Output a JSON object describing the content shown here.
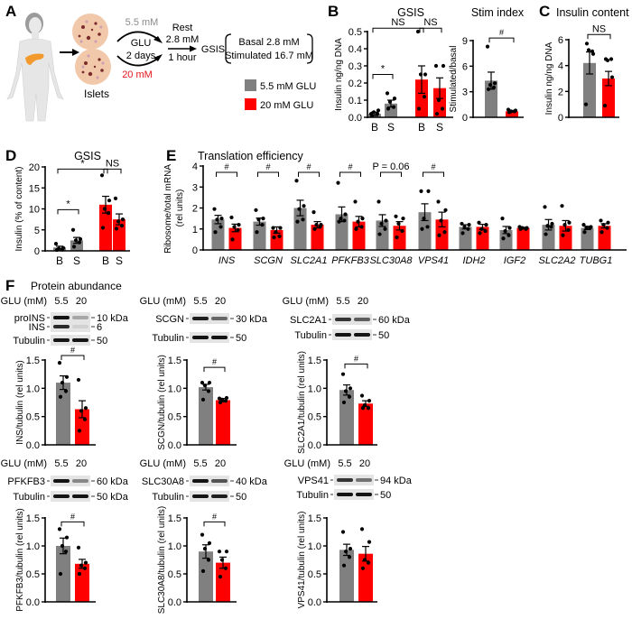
{
  "colors": {
    "glu_5_5": "#808080",
    "glu_20": "#ff0000",
    "text": "#000000",
    "gray_text": "#8c8c8c"
  },
  "panel_a": {
    "label": "A",
    "islets_label": "Islets",
    "low_glucose": "5.5 mM",
    "glu": "GLU",
    "duration": "2 days",
    "high_glucose": "20 mM",
    "rest": "Rest",
    "rest_conc": "2.8 mM",
    "rest_time": "1 hour",
    "gsis": "GSIS",
    "basal": "Basal 2.8 mM",
    "stimulated": "Stimulated 16.7 mM",
    "legend": [
      {
        "label": "5.5 mM GLU",
        "color": "#808080"
      },
      {
        "label": "20 mM GLU",
        "color": "#ff0000"
      }
    ]
  },
  "panel_labels": {
    "B": "B",
    "C": "C",
    "D": "D",
    "E": "E",
    "F": "F"
  },
  "panel_f_title": "Protein abundance",
  "chart_data": [
    {
      "id": "B_gsis",
      "type": "bar",
      "title": "GSIS",
      "ylabel": "Insulin ng/ng DNA",
      "ylim": [
        0,
        0.5
      ],
      "yticks": [
        "0.0",
        "0.1",
        "0.2",
        "0.3",
        "0.4",
        "0.5"
      ],
      "categories": [
        "B",
        "S",
        "B",
        "S"
      ],
      "bars": [
        {
          "group": "5.5 mM GLU",
          "mean": 0.02,
          "sem": 0.01,
          "points": [
            0.01,
            0.02,
            0.03,
            0.04,
            0.02
          ]
        },
        {
          "group": "5.5 mM GLU",
          "mean": 0.08,
          "sem": 0.02,
          "points": [
            0.05,
            0.06,
            0.09,
            0.11,
            0.14
          ]
        },
        {
          "group": "20 mM GLU",
          "mean": 0.22,
          "sem": 0.08,
          "points": [
            0.05,
            0.12,
            0.25,
            0.25,
            0.5
          ]
        },
        {
          "group": "20 mM GLU",
          "mean": 0.17,
          "sem": 0.06,
          "points": [
            0.02,
            0.05,
            0.1,
            0.3,
            0.3
          ]
        }
      ],
      "significance": [
        {
          "from": 0,
          "to": 1,
          "y": 0.25,
          "label": "*"
        },
        {
          "from": 0,
          "to": 2,
          "y": 0.52,
          "label": "NS"
        },
        {
          "from": 2,
          "to": 3,
          "y": 0.52,
          "label": "NS"
        }
      ]
    },
    {
      "id": "B_stim",
      "type": "bar",
      "title": "Stim index",
      "ylabel": "Stimulated/basal",
      "ylim": [
        0,
        9
      ],
      "yticks": [
        "0",
        "3",
        "6",
        "9"
      ],
      "categories": [],
      "bars": [
        {
          "group": "5.5 mM GLU",
          "mean": 4.3,
          "sem": 1.0,
          "points": [
            3.3,
            3.5,
            3.8,
            4.0,
            8.3
          ]
        },
        {
          "group": "20 mM GLU",
          "mean": 0.7,
          "sem": 0.1,
          "points": [
            0.6,
            0.7,
            0.7,
            0.8,
            0.9
          ]
        }
      ],
      "significance": [
        {
          "from": 0,
          "to": 1,
          "y": 9.3,
          "label": "#"
        }
      ]
    },
    {
      "id": "C",
      "type": "bar",
      "title": "Insulin content",
      "ylabel": "Insulin ng/ng DNA",
      "ylim": [
        0,
        6
      ],
      "yticks": [
        "0",
        "2",
        "4",
        "6"
      ],
      "categories": [],
      "bars": [
        {
          "group": "5.5 mM GLU",
          "mean": 4.2,
          "sem": 0.85,
          "points": [
            5.7,
            5.1,
            5.2,
            4.9,
            1.0
          ]
        },
        {
          "group": "20 mM GLU",
          "mean": 3.0,
          "sem": 0.55,
          "points": [
            4.5,
            4.5,
            4.4,
            3.1,
            0.9
          ]
        }
      ],
      "significance": [
        {
          "from": 0,
          "to": 1,
          "y": 6.4,
          "label": "NS"
        }
      ]
    },
    {
      "id": "D",
      "type": "bar",
      "title": "GSIS",
      "ylabel": "Insulin (% of content)",
      "ylim": [
        0,
        20
      ],
      "yticks": [
        "0",
        "5",
        "10",
        "15",
        "20"
      ],
      "categories": [
        "B",
        "S",
        "B",
        "S"
      ],
      "bars": [
        {
          "group": "5.5 mM GLU",
          "mean": 0.8,
          "sem": 0.3,
          "points": [
            0.2,
            0.3,
            0.5,
            0.7,
            1.7
          ]
        },
        {
          "group": "5.5 mM GLU",
          "mean": 2.5,
          "sem": 0.7,
          "points": [
            1.0,
            2.0,
            2.5,
            2.8,
            5.0
          ]
        },
        {
          "group": "20 mM GLU",
          "mean": 11.0,
          "sem": 2.0,
          "points": [
            5.5,
            9.0,
            10.0,
            12.0,
            18.0
          ]
        },
        {
          "group": "20 mM GLU",
          "mean": 7.5,
          "sem": 1.3,
          "points": [
            5.3,
            6.0,
            7.0,
            7.5,
            12.5
          ]
        }
      ],
      "significance": [
        {
          "from": 0,
          "to": 1,
          "y": 9.8,
          "label": "*"
        },
        {
          "from": 0,
          "to": 2,
          "y": 19.5,
          "label": "*"
        },
        {
          "from": 2,
          "to": 3,
          "y": 19.5,
          "label": "NS"
        }
      ]
    },
    {
      "id": "E",
      "type": "bar",
      "title": "Translation efficiency",
      "ylabel": [
        "Ribosome/total mRNA",
        "(rel units)"
      ],
      "ylim": [
        0,
        4
      ],
      "yticks": [
        "0",
        "1",
        "2",
        "3",
        "4"
      ],
      "categories": [
        "INS",
        "SCGN",
        "SLC2A1",
        "PFKFB3",
        "SLC30A8",
        "VPS41",
        "IDH2",
        "IGF2",
        "SLC2A2",
        "TUBG1"
      ],
      "bars": [
        {
          "group": "5.5 mM GLU",
          "mean": 1.45,
          "sem": 0.2,
          "points": [
            0.85,
            1.1,
            1.45,
            1.5,
            1.95
          ]
        },
        {
          "group": "20 mM GLU",
          "mean": 1.05,
          "sem": 0.18,
          "points": [
            0.5,
            0.95,
            1.1,
            1.2,
            1.55
          ]
        },
        {
          "group": "5.5 mM GLU",
          "mean": 1.35,
          "sem": 0.17,
          "points": [
            0.85,
            1.2,
            1.45,
            1.5,
            1.9
          ]
        },
        {
          "group": "20 mM GLU",
          "mean": 0.95,
          "sem": 0.15,
          "points": [
            0.6,
            0.65,
            0.85,
            1.05,
            1.05
          ]
        },
        {
          "group": "5.5 mM GLU",
          "mean": 2.0,
          "sem": 0.37,
          "points": [
            1.35,
            1.45,
            1.95,
            2.1,
            3.3
          ]
        },
        {
          "group": "20 mM GLU",
          "mean": 1.2,
          "sem": 0.15,
          "points": [
            1.0,
            1.1,
            1.2,
            1.2,
            1.8
          ]
        },
        {
          "group": "5.5 mM GLU",
          "mean": 1.7,
          "sem": 0.35,
          "points": [
            1.35,
            1.4,
            1.5,
            1.7,
            3.2
          ]
        },
        {
          "group": "20 mM GLU",
          "mean": 1.35,
          "sem": 0.25,
          "points": [
            1.0,
            1.1,
            1.35,
            1.5,
            2.3
          ]
        },
        {
          "group": "5.5 mM GLU",
          "mean": 1.4,
          "sem": 0.28,
          "points": [
            0.75,
            1.0,
            1.25,
            1.4,
            2.3
          ]
        },
        {
          "group": "20 mM GLU",
          "mean": 1.15,
          "sem": 0.2,
          "points": [
            0.6,
            0.9,
            1.25,
            1.5,
            1.6
          ]
        },
        {
          "group": "5.5 mM GLU",
          "mean": 1.8,
          "sem": 0.4,
          "points": [
            1.0,
            1.1,
            1.5,
            2.8,
            2.8
          ]
        },
        {
          "group": "20 mM GLU",
          "mean": 1.45,
          "sem": 0.35,
          "points": [
            0.7,
            0.85,
            1.4,
            1.9,
            2.3
          ]
        },
        {
          "group": "5.5 mM GLU",
          "mean": 1.1,
          "sem": 0.1,
          "points": [
            0.8,
            1.0,
            1.1,
            1.2,
            1.25
          ]
        },
        {
          "group": "20 mM GLU",
          "mean": 1.1,
          "sem": 0.12,
          "points": [
            0.8,
            0.9,
            1.0,
            1.2,
            1.3
          ]
        },
        {
          "group": "5.5 mM GLU",
          "mean": 0.95,
          "sem": 0.17,
          "points": [
            0.55,
            0.7,
            0.9,
            1.05,
            1.5
          ]
        },
        {
          "group": "20 mM GLU",
          "mean": 1.05,
          "sem": 0.03,
          "points": [
            1.0,
            1.0,
            1.05,
            1.05,
            1.1
          ]
        },
        {
          "group": "5.5 mM GLU",
          "mean": 1.2,
          "sem": 0.25,
          "points": [
            0.75,
            1.1,
            1.15,
            1.25,
            2.05
          ]
        },
        {
          "group": "20 mM GLU",
          "mean": 1.15,
          "sem": 0.25,
          "points": [
            0.7,
            0.95,
            1.2,
            1.3,
            2.1
          ]
        },
        {
          "group": "5.5 mM GLU",
          "mean": 1.05,
          "sem": 0.08,
          "points": [
            0.85,
            1.05,
            1.05,
            1.1,
            1.2
          ]
        },
        {
          "group": "20 mM GLU",
          "mean": 1.15,
          "sem": 0.1,
          "points": [
            0.85,
            1.05,
            1.2,
            1.3,
            1.4
          ]
        }
      ],
      "significance": [
        {
          "from": 0,
          "to": 1,
          "y": 3.7,
          "label": "#"
        },
        {
          "from": 2,
          "to": 3,
          "y": 3.7,
          "label": "#"
        },
        {
          "from": 4,
          "to": 5,
          "y": 3.7,
          "label": "#"
        },
        {
          "from": 6,
          "to": 7,
          "y": 3.7,
          "label": "#"
        },
        {
          "from": 8,
          "to": 9,
          "y": 3.7,
          "label": "P = 0.06"
        },
        {
          "from": 10,
          "to": 11,
          "y": 3.7,
          "label": "#"
        }
      ]
    },
    {
      "id": "F_INS",
      "type": "bar",
      "ylabel": "INS/tubulin (rel units)",
      "ylim": [
        0,
        1.5
      ],
      "yticks": [
        "0.0",
        "0.5",
        "1.0",
        "1.5"
      ],
      "categories": [],
      "bars": [
        {
          "group": "5.5 mM GLU",
          "mean": 1.1,
          "sem": 0.12,
          "points": [
            0.85,
            0.95,
            1.1,
            1.2,
            1.45
          ]
        },
        {
          "group": "20 mM GLU",
          "mean": 0.63,
          "sem": 0.15,
          "points": [
            0.25,
            0.45,
            0.6,
            0.65,
            1.15
          ]
        }
      ],
      "significance": [
        {
          "from": 0,
          "to": 1,
          "y": 1.58,
          "label": "#"
        }
      ]
    },
    {
      "id": "F_SCGN",
      "type": "bar",
      "ylabel": "SCGN/tubulin (rel units)",
      "ylim": [
        0,
        1.5
      ],
      "yticks": [
        "0.0",
        "0.5",
        "1.0",
        "1.5"
      ],
      "categories": [],
      "bars": [
        {
          "group": "5.5 mM GLU",
          "mean": 1.02,
          "sem": 0.05,
          "points": [
            0.8,
            0.95,
            1.05,
            1.1,
            1.1
          ]
        },
        {
          "group": "20 mM GLU",
          "mean": 0.79,
          "sem": 0.03,
          "points": [
            0.75,
            0.78,
            0.8,
            0.83,
            0.82
          ]
        }
      ],
      "significance": [
        {
          "from": 0,
          "to": 1,
          "y": 1.37,
          "label": "#"
        }
      ]
    },
    {
      "id": "F_SLC2A1",
      "type": "bar",
      "ylabel": "SLC2A1/tubulin (rel units)",
      "ylim": [
        0,
        1.5
      ],
      "yticks": [
        "0.0",
        "0.5",
        "1.0",
        "1.5"
      ],
      "categories": [],
      "bars": [
        {
          "group": "5.5 mM GLU",
          "mean": 0.97,
          "sem": 0.09,
          "points": [
            0.75,
            0.85,
            0.95,
            1.0,
            1.25
          ]
        },
        {
          "group": "20 mM GLU",
          "mean": 0.73,
          "sem": 0.05,
          "points": [
            0.65,
            0.65,
            0.7,
            0.78,
            0.87
          ]
        }
      ],
      "significance": [
        {
          "from": 0,
          "to": 1,
          "y": 1.43,
          "label": "#"
        }
      ]
    },
    {
      "id": "F_PFKFB3",
      "type": "bar",
      "ylabel": "PFKFB3/tubulin (rel units)",
      "ylim": [
        0,
        1.5
      ],
      "yticks": [
        "0.0",
        "0.5",
        "1.0",
        "1.5"
      ],
      "categories": [],
      "bars": [
        {
          "group": "5.5 mM GLU",
          "mean": 1.0,
          "sem": 0.14,
          "points": [
            0.5,
            0.9,
            1.0,
            1.15,
            1.3
          ]
        },
        {
          "group": "20 mM GLU",
          "mean": 0.68,
          "sem": 0.08,
          "points": [
            0.5,
            0.6,
            0.65,
            0.7,
            0.97
          ]
        }
      ],
      "significance": [
        {
          "from": 0,
          "to": 1,
          "y": 1.43,
          "label": "#"
        }
      ]
    },
    {
      "id": "F_SLC30A8",
      "type": "bar",
      "ylabel": "SLC30A8/tubulin (rel units)",
      "ylim": [
        0,
        1.5
      ],
      "yticks": [
        "0.0",
        "0.5",
        "1.0",
        "1.5"
      ],
      "categories": [],
      "bars": [
        {
          "group": "5.5 mM GLU",
          "mean": 0.9,
          "sem": 0.12,
          "points": [
            0.55,
            0.75,
            0.95,
            1.05,
            1.2
          ]
        },
        {
          "group": "20 mM GLU",
          "mean": 0.7,
          "sem": 0.1,
          "points": [
            0.45,
            0.6,
            0.75,
            0.9,
            0.9
          ]
        }
      ],
      "significance": [
        {
          "from": 0,
          "to": 1,
          "y": 1.43,
          "label": "#"
        }
      ]
    },
    {
      "id": "F_VPS41",
      "type": "bar",
      "ylabel": "VPS41/tubulin (rel units)",
      "ylim": [
        0,
        1.5
      ],
      "yticks": [
        "0.0",
        "0.5",
        "1.0",
        "1.5"
      ],
      "categories": [],
      "bars": [
        {
          "group": "5.5 mM GLU",
          "mean": 0.93,
          "sem": 0.1,
          "points": [
            0.65,
            0.8,
            0.9,
            0.95,
            1.25
          ]
        },
        {
          "group": "20 mM GLU",
          "mean": 0.86,
          "sem": 0.13,
          "points": [
            0.6,
            0.7,
            0.75,
            1.07,
            1.3
          ]
        }
      ],
      "significance": []
    }
  ],
  "blots": [
    {
      "id": "INS",
      "glu_label": "GLU (mM)",
      "lanes": [
        "5.5",
        "20"
      ],
      "rows": [
        {
          "label": "proINS",
          "mw": "10 kDa",
          "intensity": [
            1,
            0.3
          ]
        },
        {
          "label": "INS",
          "mw": "6",
          "intensity": [
            0.9,
            0.1
          ]
        },
        {
          "label": "Tubulin",
          "mw": "50",
          "intensity": [
            1,
            1
          ]
        }
      ]
    },
    {
      "id": "SCGN",
      "glu_label": "GLU (mM)",
      "lanes": [
        "5.5",
        "20"
      ],
      "rows": [
        {
          "label": "SCGN",
          "mw": "30 kDa",
          "intensity": [
            0.95,
            0.6
          ]
        },
        {
          "label": "Tubulin",
          "mw": "50",
          "intensity": [
            1,
            1
          ]
        }
      ]
    },
    {
      "id": "SLC2A1",
      "glu_label": "GLU (mM)",
      "lanes": [
        "5.5",
        "20"
      ],
      "rows": [
        {
          "label": "SLC2A1",
          "mw": "60 kDa",
          "intensity": [
            0.85,
            0.65
          ]
        },
        {
          "label": "Tubulin",
          "mw": "50",
          "intensity": [
            1,
            1
          ]
        }
      ]
    },
    {
      "id": "PFKFB3",
      "glu_label": "GLU (mM)",
      "lanes": [
        "5.5",
        "20"
      ],
      "rows": [
        {
          "label": "PFKFB3",
          "mw": "60 kDa",
          "intensity": [
            1,
            0.45
          ]
        },
        {
          "label": "Tubulin",
          "mw": "50 kDa",
          "intensity": [
            1,
            1
          ]
        }
      ]
    },
    {
      "id": "SLC30A8",
      "glu_label": "GLU (mM)",
      "lanes": [
        "5.5",
        "20"
      ],
      "rows": [
        {
          "label": "SLC30A8",
          "mw": "40 kDa",
          "intensity": [
            1,
            0.7
          ]
        },
        {
          "label": "Tubulin",
          "mw": "50",
          "intensity": [
            1,
            0.95
          ]
        }
      ]
    },
    {
      "id": "VPS41",
      "glu_label": "GLU (mM)",
      "lanes": [
        "5.5",
        "20"
      ],
      "rows": [
        {
          "label": "VPS41",
          "mw": "94 kDa",
          "intensity": [
            0.85,
            0.55
          ]
        },
        {
          "label": "Tubulin",
          "mw": "50",
          "intensity": [
            1,
            1
          ]
        }
      ]
    }
  ]
}
